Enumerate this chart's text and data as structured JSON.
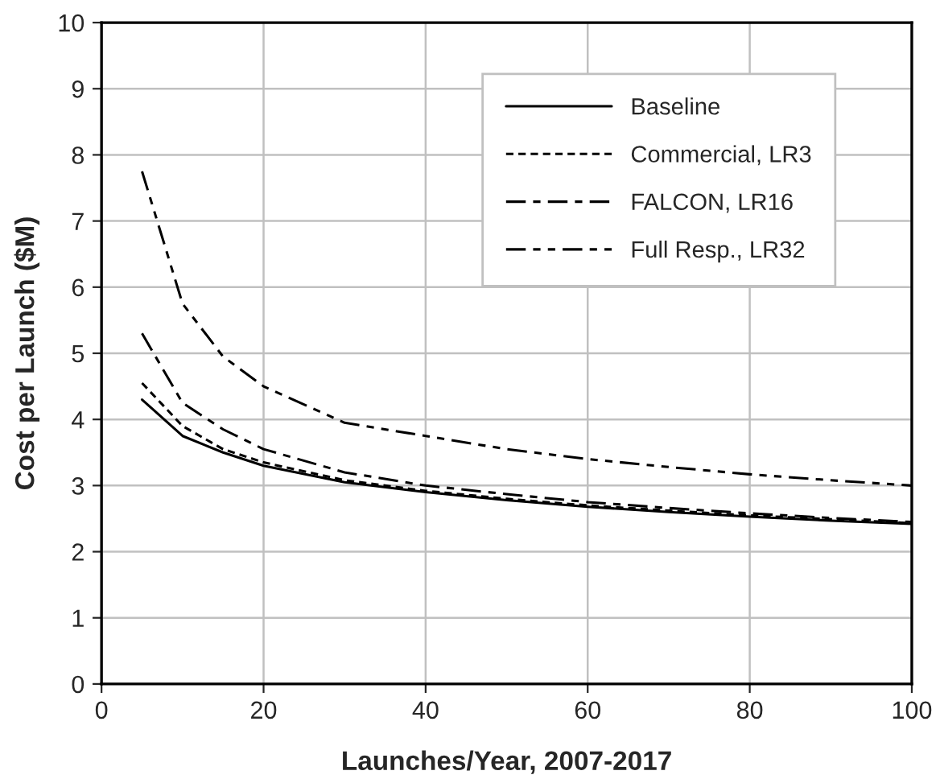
{
  "chart_data": {
    "type": "line",
    "xlabel": "Launches/Year, 2007-2017",
    "ylabel": "Cost per Launch ($M)",
    "xlim": [
      0,
      100
    ],
    "xticks": [
      0,
      20,
      40,
      60,
      80,
      100
    ],
    "ylim": [
      0,
      10
    ],
    "yticks": [
      0,
      1,
      2,
      3,
      4,
      5,
      6,
      7,
      8,
      9,
      10
    ],
    "grid": true,
    "legend": "top right",
    "marker": "none",
    "x": [
      5,
      10,
      15,
      20,
      30,
      40,
      50,
      60,
      70,
      80,
      90,
      100
    ],
    "series": [
      {
        "name": "Baseline",
        "color": "#000000",
        "line_style": "solid",
        "values": [
          4.3,
          3.75,
          3.5,
          3.3,
          3.05,
          2.9,
          2.78,
          2.68,
          2.6,
          2.53,
          2.47,
          2.42
        ]
      },
      {
        "name": "Commercial, LR3",
        "color": "#000000",
        "line_style": "dashed",
        "values": [
          4.55,
          3.9,
          3.55,
          3.35,
          3.08,
          2.92,
          2.8,
          2.7,
          2.62,
          2.55,
          2.49,
          2.43
        ]
      },
      {
        "name": "FALCON, LR16",
        "color": "#000000",
        "line_style": "dashdot",
        "values": [
          5.3,
          4.25,
          3.85,
          3.55,
          3.2,
          3.0,
          2.87,
          2.75,
          2.66,
          2.58,
          2.51,
          2.45
        ]
      },
      {
        "name": "Full Resp., LR32",
        "color": "#000000",
        "line_style": "dashdotdot",
        "values": [
          7.75,
          5.75,
          4.95,
          4.5,
          3.95,
          3.75,
          3.55,
          3.4,
          3.28,
          3.17,
          3.08,
          3.0
        ]
      }
    ]
  }
}
